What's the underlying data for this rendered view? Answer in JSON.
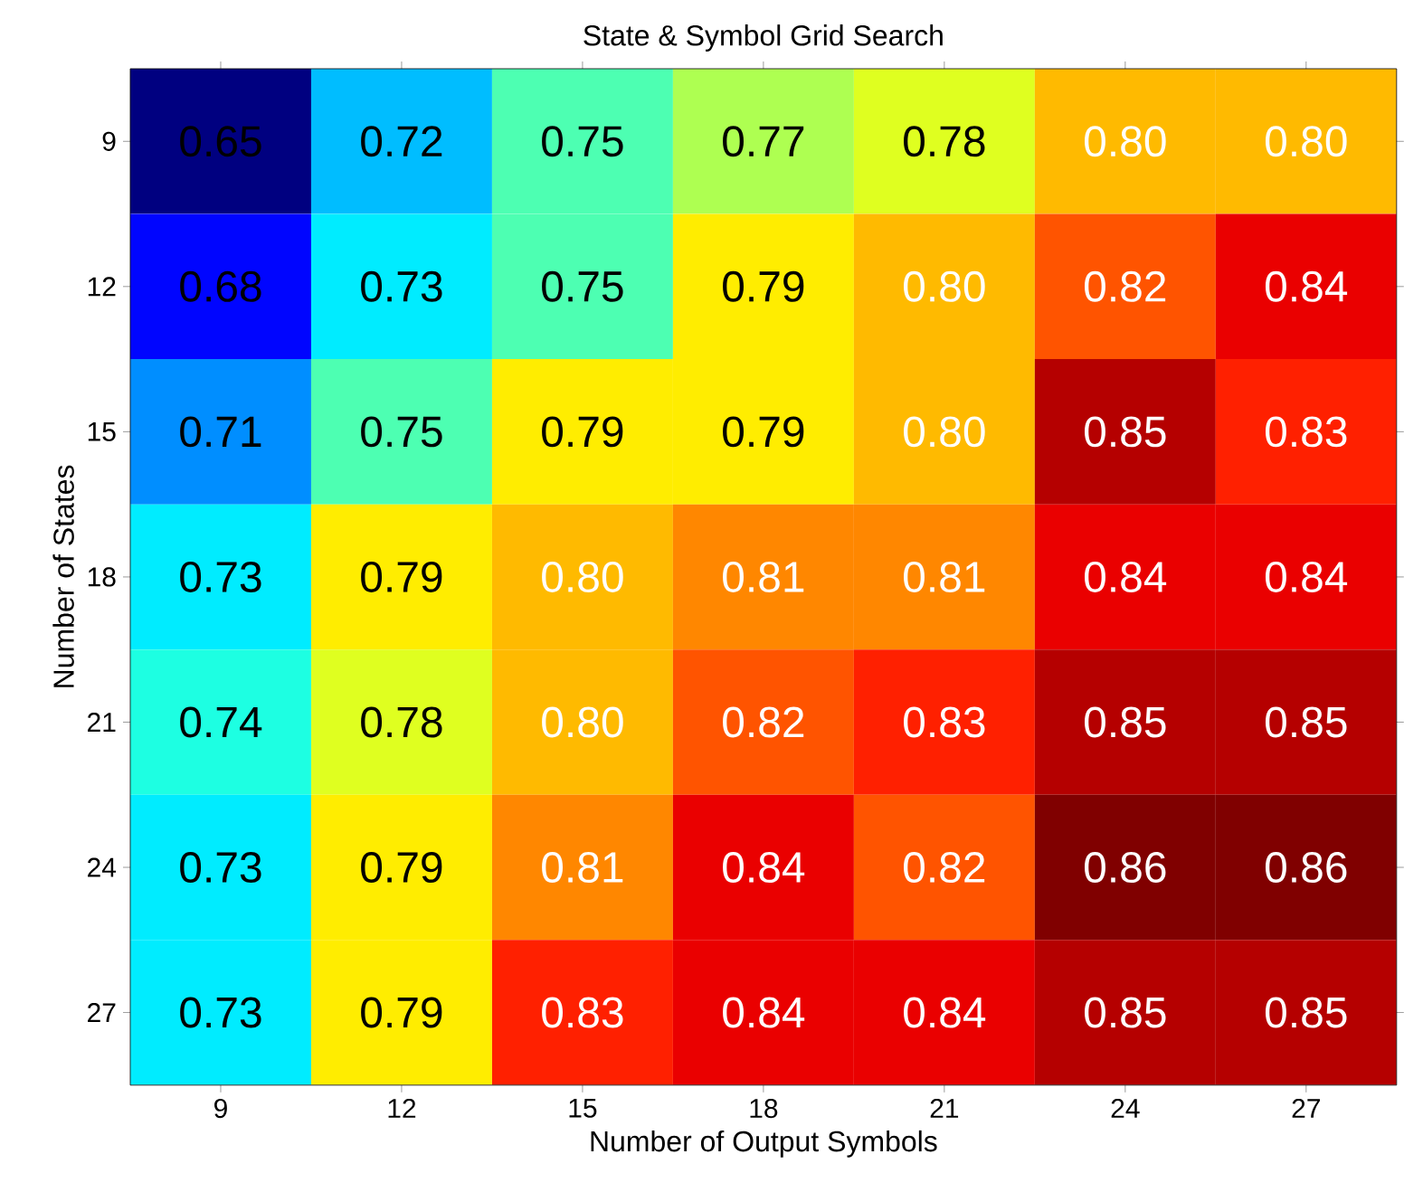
{
  "chart_data": {
    "type": "heatmap",
    "title": "State & Symbol Grid Search",
    "xlabel": "Number of Output Symbols",
    "ylabel": "Number of States",
    "categories": [
      "9",
      "12",
      "15",
      "18",
      "21",
      "24",
      "27"
    ],
    "y_categories": [
      "9",
      "12",
      "15",
      "18",
      "21",
      "24",
      "27"
    ],
    "cells": [
      [
        0.65,
        0.72,
        0.75,
        0.77,
        0.78,
        0.8,
        0.8
      ],
      [
        0.68,
        0.73,
        0.75,
        0.79,
        0.8,
        0.82,
        0.84
      ],
      [
        0.71,
        0.75,
        0.79,
        0.79,
        0.8,
        0.85,
        0.83
      ],
      [
        0.73,
        0.79,
        0.8,
        0.81,
        0.81,
        0.84,
        0.84
      ],
      [
        0.74,
        0.78,
        0.8,
        0.82,
        0.83,
        0.85,
        0.85
      ],
      [
        0.73,
        0.79,
        0.81,
        0.84,
        0.82,
        0.86,
        0.86
      ],
      [
        0.73,
        0.79,
        0.83,
        0.84,
        0.84,
        0.85,
        0.85
      ]
    ],
    "cell_labels": [
      [
        "0.65",
        "0.72",
        "0.75",
        "0.77",
        "0.78",
        "0.80",
        "0.80"
      ],
      [
        "0.68",
        "0.73",
        "0.75",
        "0.79",
        "0.80",
        "0.82",
        "0.84"
      ],
      [
        "0.71",
        "0.75",
        "0.79",
        "0.79",
        "0.80",
        "0.85",
        "0.83"
      ],
      [
        "0.73",
        "0.79",
        "0.80",
        "0.81",
        "0.81",
        "0.84",
        "0.84"
      ],
      [
        "0.74",
        "0.78",
        "0.80",
        "0.82",
        "0.83",
        "0.85",
        "0.85"
      ],
      [
        "0.73",
        "0.79",
        "0.81",
        "0.84",
        "0.82",
        "0.86",
        "0.86"
      ],
      [
        "0.73",
        "0.79",
        "0.83",
        "0.84",
        "0.84",
        "0.85",
        "0.85"
      ]
    ]
  }
}
